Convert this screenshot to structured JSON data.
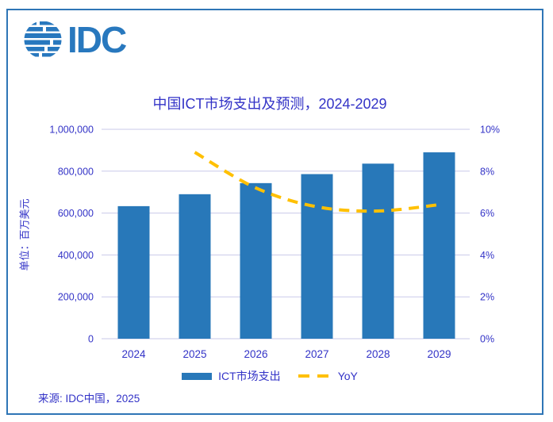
{
  "logo": {
    "text": "IDC"
  },
  "chart_data": {
    "type": "bar",
    "title": "中国ICT市场支出及预测，2024-2029",
    "categories": [
      "2024",
      "2025",
      "2026",
      "2027",
      "2028",
      "2029"
    ],
    "series": [
      {
        "name": "ICT市场支出",
        "type": "bar",
        "axis": "left",
        "color": "#2878B9",
        "values": [
          633000,
          690000,
          743000,
          786000,
          836000,
          890000
        ]
      },
      {
        "name": "YoY",
        "type": "line",
        "style": "dashed",
        "axis": "right",
        "color": "#FFC000",
        "values": [
          null,
          8.9,
          7.2,
          6.3,
          6.1,
          6.4
        ]
      }
    ],
    "left_axis": {
      "label": "单位：百万美元",
      "min": 0,
      "max": 1000000,
      "step": 200000,
      "tick_labels": [
        "0",
        "200,000",
        "400,000",
        "600,000",
        "800,000",
        "1,000,000"
      ]
    },
    "right_axis": {
      "min": 0,
      "max": 10,
      "step": 2,
      "tick_labels": [
        "0%",
        "2%",
        "4%",
        "6%",
        "8%",
        "10%"
      ]
    },
    "legend": {
      "position": "bottom",
      "entries": [
        "ICT市场支出",
        "YoY"
      ]
    },
    "grid": true
  },
  "source": {
    "text": "来源: IDC中国，2025"
  },
  "colors": {
    "bar": "#2878B9",
    "line": "#FFC000",
    "text": "#3333C7",
    "grid": "#C9C9EA",
    "frame": "#2E75B6",
    "logo": "#2878BE"
  }
}
